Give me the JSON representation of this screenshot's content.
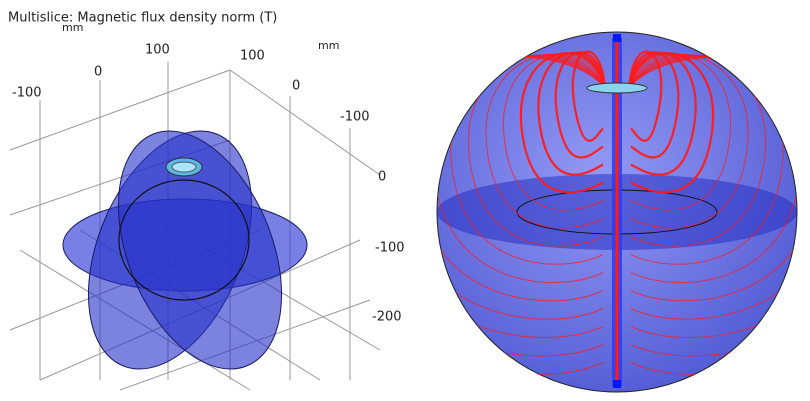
{
  "left_panel": {
    "title": "Multislice: Magnetic flux density norm (T)",
    "axis_units": [
      "mm",
      "mm"
    ],
    "axis_1_ticks": [
      "100",
      "0",
      "-100"
    ],
    "axis_2_ticks": [
      "100",
      "0",
      "-100"
    ],
    "axis_3_ticks": [
      "0",
      "-100",
      "-200"
    ]
  }
}
